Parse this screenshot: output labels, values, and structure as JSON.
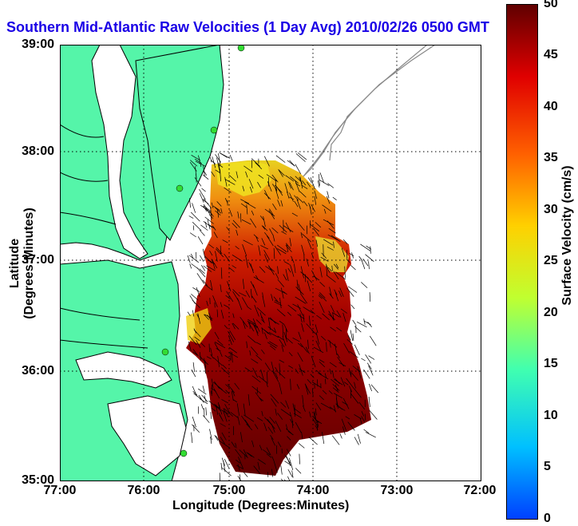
{
  "title": "Southern Mid-Atlantic Raw Velocities (1 Day Avg) 2010/02/26 0500 GMT",
  "axes": {
    "xlabel": "Longitude (Degrees:Minutes)",
    "ylabel": "Latitude (Degrees:Minutes)",
    "x_ticks": [
      "77:00",
      "76:00",
      "75:00",
      "74:00",
      "73:00",
      "72:00"
    ],
    "y_ticks": [
      "39:00",
      "38:00",
      "37:00",
      "36:00",
      "35:00"
    ],
    "x_range_deg_w": [
      77,
      72
    ],
    "y_range_deg_n": [
      35,
      39
    ],
    "grid": true
  },
  "colorbar": {
    "label": "Surface Velocity (cm/s)",
    "ticks": [
      "50",
      "45",
      "40",
      "35",
      "30",
      "25",
      "20",
      "15",
      "10",
      "5",
      "0"
    ],
    "range": [
      0,
      50
    ],
    "colormap": "jet",
    "colors": [
      "#0040ff",
      "#00c0ff",
      "#40ffb0",
      "#c0ff30",
      "#ffd000",
      "#ff6000",
      "#e00000",
      "#600000"
    ]
  },
  "map_colors": {
    "land": "#55f5a9",
    "water": "#ffffff",
    "coastline": "#000000",
    "bathymetry": "#888888",
    "stations": "#33dd33",
    "vectors": "#000000"
  }
}
